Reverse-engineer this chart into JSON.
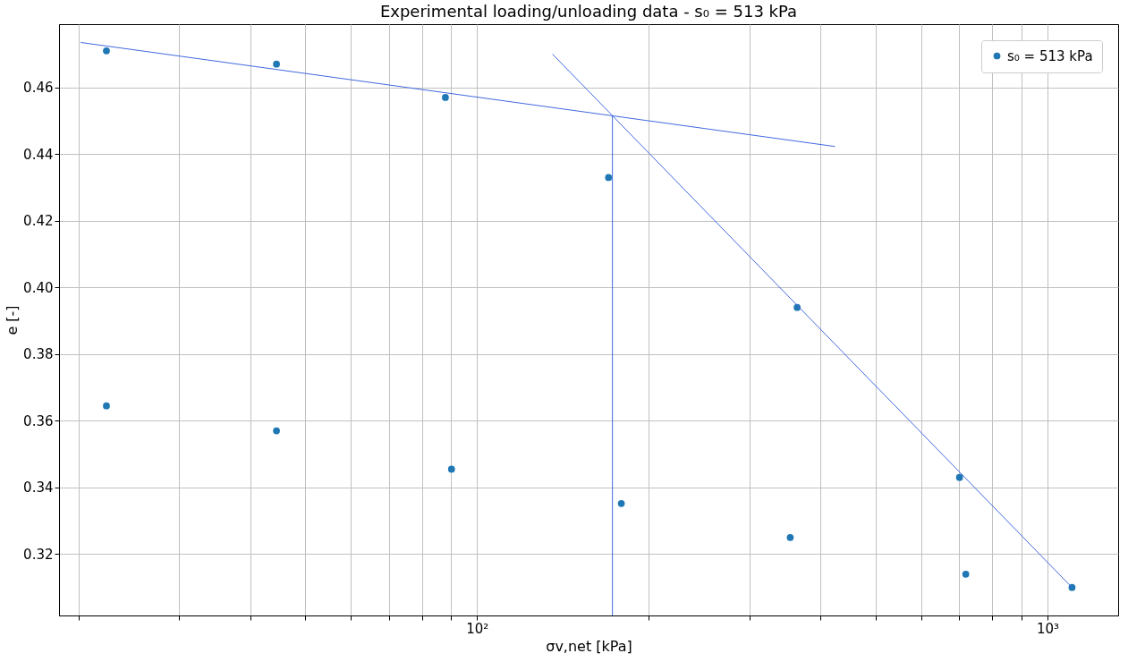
{
  "chart_data": {
    "type": "scatter",
    "title": "Experimental loading/unloading data - s₀ = 513 kPa",
    "xlabel": "σv,net [kPa]",
    "ylabel": "e [-]",
    "log": "x",
    "xlim": [
      18.5,
      1330
    ],
    "ylim": [
      0.3016,
      0.479
    ],
    "xticks": [
      {
        "value": 20,
        "label": null
      },
      {
        "value": 30,
        "label": null
      },
      {
        "value": 40,
        "label": null
      },
      {
        "value": 50,
        "label": null
      },
      {
        "value": 60,
        "label": null
      },
      {
        "value": 70,
        "label": null
      },
      {
        "value": 80,
        "label": null
      },
      {
        "value": 90,
        "label": null
      },
      {
        "value": 100,
        "label": "10²"
      },
      {
        "value": 200,
        "label": null
      },
      {
        "value": 300,
        "label": null
      },
      {
        "value": 400,
        "label": null
      },
      {
        "value": 500,
        "label": null
      },
      {
        "value": 600,
        "label": null
      },
      {
        "value": 700,
        "label": null
      },
      {
        "value": 800,
        "label": null
      },
      {
        "value": 900,
        "label": null
      },
      {
        "value": 1000,
        "label": "10³"
      }
    ],
    "yticks": [
      {
        "value": 0.32,
        "label": "0.32"
      },
      {
        "value": 0.34,
        "label": "0.34"
      },
      {
        "value": 0.36,
        "label": "0.36"
      },
      {
        "value": 0.38,
        "label": "0.38"
      },
      {
        "value": 0.4,
        "label": "0.40"
      },
      {
        "value": 0.42,
        "label": "0.42"
      },
      {
        "value": 0.44,
        "label": "0.44"
      },
      {
        "value": 0.46,
        "label": "0.46"
      }
    ],
    "grid": true,
    "legend": "top right",
    "series": [
      {
        "name": "s₀ = 513 kPa",
        "color": "#1f77b4",
        "marker": "circle",
        "x": [
          22.4,
          22.4,
          44.5,
          44.5,
          88.0,
          90.2,
          170,
          179,
          354,
          364,
          701,
          719,
          1104
        ],
        "values": [
          0.471,
          0.3645,
          0.467,
          0.357,
          0.457,
          0.3455,
          0.433,
          0.3352,
          0.325,
          0.394,
          0.343,
          0.314,
          0.31
        ]
      },
      {
        "color": "#4169e1",
        "type": "line",
        "marker": "none",
        "x": [
          20.2,
          424
        ],
        "values": [
          0.4735,
          0.4423
        ]
      },
      {
        "color": "#4169e1",
        "type": "line",
        "marker": "none",
        "x": [
          135.6,
          1104
        ],
        "values": [
          0.47,
          0.31
        ]
      },
      {
        "color": "#4169e1",
        "type": "line",
        "marker": "none",
        "x": [
          172.7,
          172.7
        ],
        "values": [
          0.4515,
          0.3016
        ]
      }
    ]
  }
}
